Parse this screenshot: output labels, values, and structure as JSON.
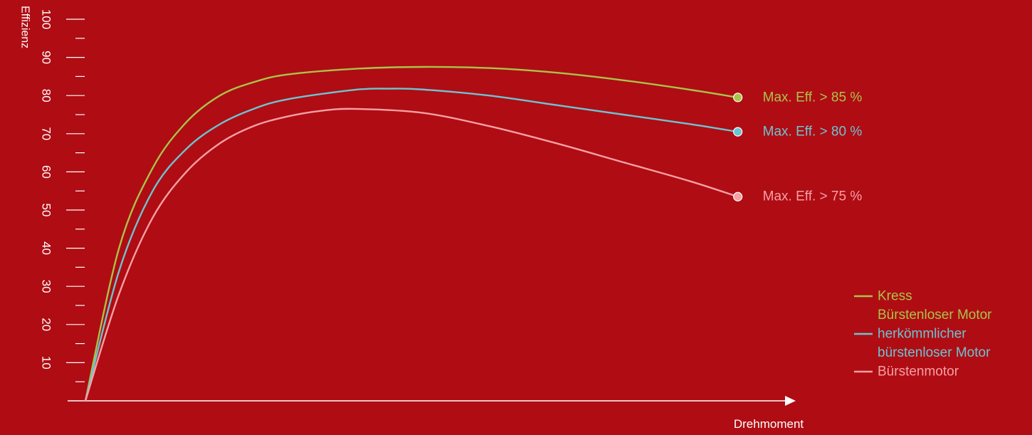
{
  "chart_data": {
    "type": "line",
    "title": "",
    "ylabel": "Effizienz",
    "xlabel": "Drehmoment",
    "ylim": [
      0,
      100
    ],
    "yticks": [
      10,
      20,
      30,
      40,
      50,
      60,
      70,
      80,
      90,
      100
    ],
    "xlim": [
      0,
      100
    ],
    "grid": false,
    "legend_position": "bottom-right",
    "background_color": "#b00c13",
    "axis_color": "#ffffff",
    "series": [
      {
        "name": "Kress Bürstenloser Motor",
        "legend_lines": [
          "Kress",
          "Bürstenloser Motor"
        ],
        "color": "#a9c44a",
        "end_label": "Max. Eff. > 85 %",
        "x": [
          0,
          5,
          10,
          15,
          20,
          25,
          30,
          40,
          50,
          60,
          70,
          80,
          90,
          97
        ],
        "y": [
          0,
          40,
          61,
          73,
          80,
          83.5,
          85.5,
          87,
          87.5,
          87.2,
          86,
          84,
          81.5,
          79.5
        ]
      },
      {
        "name": "herkömmlicher bürstenloser Motor",
        "legend_lines": [
          "herkömmlicher",
          "bürstenloser Motor"
        ],
        "color": "#6cc4d2",
        "end_label": "Max. Eff. > 80 %",
        "x": [
          0,
          5,
          10,
          15,
          20,
          25,
          30,
          40,
          45,
          50,
          60,
          70,
          80,
          90,
          97
        ],
        "y": [
          0,
          34,
          55,
          66,
          72.5,
          76.5,
          79,
          81.5,
          81.8,
          81.6,
          80,
          77.5,
          75,
          72.5,
          70.5
        ]
      },
      {
        "name": "Bürstenmotor",
        "legend_lines": [
          "Bürstenmotor"
        ],
        "color": "#f5a0a4",
        "end_label": "Max. Eff. > 75 %",
        "x": [
          0,
          5,
          10,
          15,
          20,
          25,
          30,
          35,
          40,
          50,
          60,
          70,
          80,
          90,
          97
        ],
        "y": [
          0,
          28,
          48,
          60,
          67.5,
          72,
          74.5,
          76,
          76.5,
          75.5,
          72,
          67.5,
          62.5,
          57.5,
          53.5
        ]
      }
    ]
  }
}
